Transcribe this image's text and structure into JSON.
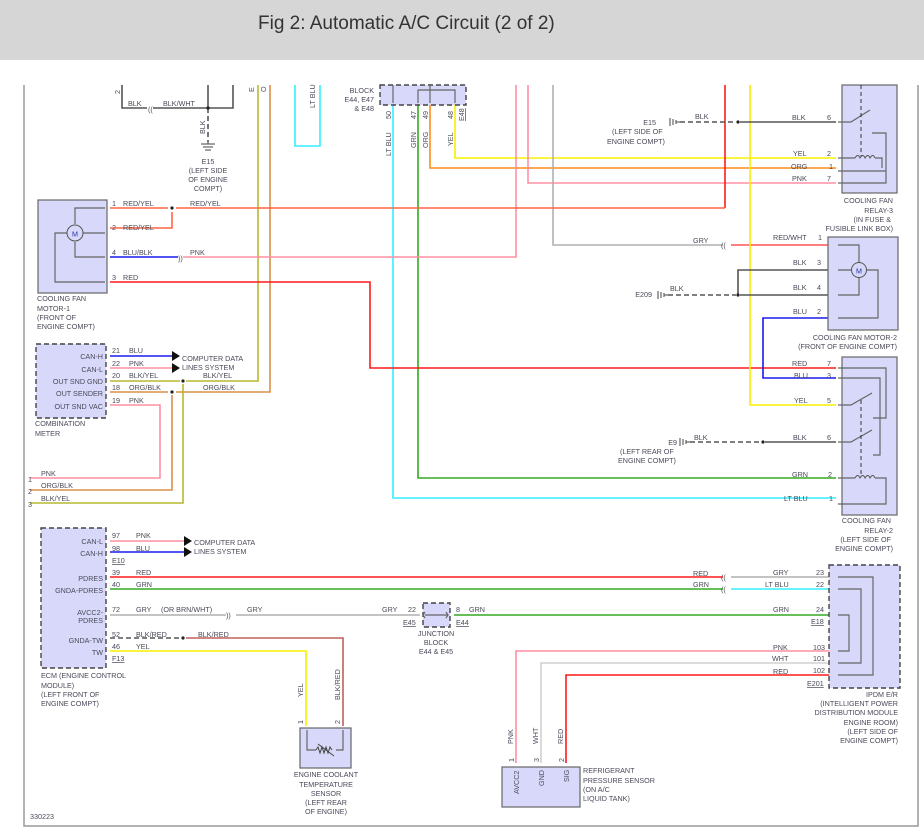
{
  "title": "Fig 2: Automatic A/C Circuit (2 of 2)",
  "figure_id": "330223",
  "colors": {
    "header_bg": "#d6d6d6",
    "component_fill": "#d8d8fa",
    "red": "#ff1a1a",
    "green": "#33aa22",
    "lt_blue": "#33eeff",
    "yellow": "#f5f000",
    "pink": "#ff8fa3",
    "orange": "#ff8c1a",
    "gray": "#b0b0b0",
    "blue": "#1a1aee",
    "black": "#555555"
  },
  "icons": [
    "ground-icon",
    "motor-icon",
    "relay-switch-icon",
    "relay-coil-icon",
    "thermistor-icon",
    "connector-icon",
    "arrow-icon",
    "splice-dot-icon"
  ],
  "e15_top": {
    "pin": "2",
    "blk": "BLK",
    "blkwht": "BLK/WHT",
    "blk_v": "BLK",
    "id": "E15",
    "loc": [
      "(LEFT SIDE",
      "OF ENGINE",
      "COMPT)"
    ],
    "e": "E",
    "o": "O",
    "ltblu": "LT BLU"
  },
  "joint_block": {
    "name": [
      "BLOCK",
      "E44, E47",
      "& E48"
    ],
    "pins": [
      "50",
      "47",
      "49",
      "48"
    ],
    "conn": "E48",
    "wires": [
      "LT BLU",
      "GRN",
      "ORG",
      "YEL"
    ]
  },
  "motor1": {
    "name": [
      "COOLING FAN",
      "MOTOR-1",
      "(FRONT OF",
      "ENGINE COMPT)"
    ],
    "m": "M",
    "pins": [
      {
        "n": "1",
        "w": "RED/YEL"
      },
      {
        "n": "2",
        "w": "RED/YEL"
      },
      {
        "n": "4",
        "w": "BLU/BLK"
      },
      {
        "n": "3",
        "w": "RED"
      }
    ],
    "redyel": "RED/YEL",
    "pnk": "PNK"
  },
  "relay3": {
    "name": [
      "COOLING FAN",
      "RELAY-3",
      "(IN FUSE &",
      "FUSIBLE LINK BOX)"
    ],
    "pins": [
      {
        "n": "6",
        "w": "BLK"
      },
      {
        "n": "2",
        "w": "YEL"
      },
      {
        "n": "1",
        "w": "ORG"
      },
      {
        "n": "7",
        "w": "PNK"
      }
    ],
    "ground": {
      "id": "E15",
      "w": "BLK",
      "loc": [
        "(LEFT SIDE OF",
        "ENGINE COMPT)"
      ]
    }
  },
  "motor2": {
    "name": [
      "COOLING FAN MOTOR-2",
      "(FRONT OF ENGINE COMPT)"
    ],
    "m": "M",
    "gry": "GRY",
    "pins": [
      {
        "n": "1",
        "w": "RED/WHT"
      },
      {
        "n": "3",
        "w": "BLK"
      },
      {
        "n": "4",
        "w": "BLK"
      },
      {
        "n": "2",
        "w": "BLU"
      }
    ],
    "ground": {
      "id": "E209",
      "w": "BLK"
    }
  },
  "relay2": {
    "name": [
      "COOLING FAN",
      "RELAY-2",
      "(LEFT SIDE OF",
      "ENGINE COMPT)"
    ],
    "pins": [
      {
        "n": "7",
        "w": "RED"
      },
      {
        "n": "3",
        "w": "BLU"
      },
      {
        "n": "5",
        "w": "YEL"
      },
      {
        "n": "6",
        "w": "BLK"
      },
      {
        "n": "2",
        "w": "GRN"
      },
      {
        "n": "1",
        "w": "LT BLU"
      }
    ],
    "ground": {
      "id": "E9",
      "w": "BLK",
      "loc": [
        "(LEFT REAR OF",
        "ENGINE COMPT)"
      ]
    }
  },
  "meter": {
    "name": [
      "COMBINATION",
      "METER"
    ],
    "pins": [
      {
        "n": "21",
        "s": "CAN-H",
        "w": "BLU"
      },
      {
        "n": "22",
        "s": "CAN-L",
        "w": "PNK"
      },
      {
        "n": "20",
        "s": "OUT SND GND",
        "w": "BLK/YEL"
      },
      {
        "n": "18",
        "s": "OUT SENDER",
        "w": "ORG/BLK"
      },
      {
        "n": "19",
        "s": "OUT SND VAC",
        "w": "PNK"
      }
    ],
    "cdl": [
      "COMPUTER DATA",
      "LINES SYSTEM"
    ],
    "blkyel": "BLK/YEL",
    "orgblk": "ORG/BLK",
    "ext": [
      {
        "n": "1",
        "w": "PNK"
      },
      {
        "n": "2",
        "w": "ORG/BLK"
      },
      {
        "n": "3",
        "w": "BLK/YEL"
      }
    ]
  },
  "ecm": {
    "name": [
      "ECM (ENGINE CONTROL",
      "MODULE)",
      "(LEFT FRONT OF",
      "ENGINE COMPT)"
    ],
    "pins": [
      {
        "n": "97",
        "s": "CAN-L",
        "w": "PNK"
      },
      {
        "n": "98",
        "s": "CAN-H",
        "w": "BLU"
      },
      {
        "n": "39",
        "s": "PDRES",
        "w": "RED"
      },
      {
        "n": "40",
        "s": "GNDA-PDRES",
        "w": "GRN"
      },
      {
        "n": "72",
        "s": "AVCC2-",
        "s2": "PDRES",
        "w": "GRY",
        "alt": "(OR BRN/WHT)"
      },
      {
        "n": "52",
        "s": "GNDA-TW",
        "w": "BLK/RED"
      },
      {
        "n": "46",
        "s": "TW",
        "w": "YEL"
      }
    ],
    "conn": [
      "E10",
      "F13"
    ],
    "cdl": [
      "COMPUTER DATA",
      "LINES SYSTEM"
    ],
    "gry": "GRY",
    "blkred": "BLK/RED"
  },
  "junction": {
    "name": [
      "JUNCTION",
      "BLOCK",
      "E44 & E45"
    ],
    "pin_in": "22",
    "pin_out": "8",
    "conn_in": "E45",
    "conn_out": "E44",
    "gry": "GRY",
    "grn": "GRN"
  },
  "ipdm": {
    "name": [
      "IPDM E/R",
      "(INTELLIGENT POWER",
      "DISTRIBUTION MODULE",
      "ENGINE ROOM)",
      "(LEFT SIDE OF",
      "ENGINE COMPT)"
    ],
    "pins": [
      {
        "n": "23",
        "w": "GRY",
        "from": "RED"
      },
      {
        "n": "22",
        "w": "LT BLU",
        "from": "GRN"
      },
      {
        "n": "24",
        "w": "GRN"
      },
      {
        "n": "103",
        "w": "PNK"
      },
      {
        "n": "101",
        "w": "WHT"
      },
      {
        "n": "102",
        "w": "RED"
      }
    ],
    "conn": [
      "E18",
      "E201"
    ]
  },
  "ect": {
    "name": [
      "ENGINE COOLANT",
      "TEMPERATURE",
      "SENSOR",
      "(LEFT REAR",
      "OF ENGINE)"
    ],
    "pins": [
      {
        "n": "1",
        "w": "YEL"
      },
      {
        "n": "2",
        "w": "BLK/RED"
      }
    ]
  },
  "rps": {
    "name": [
      "REFRIGERANT",
      "PRESSURE SENSOR",
      "(ON A/C",
      "LIQUID TANK)"
    ],
    "pins": [
      {
        "n": "1",
        "s": "AVCC2",
        "w": "PNK"
      },
      {
        "n": "3",
        "s": "GND",
        "w": "WHT"
      },
      {
        "n": "2",
        "s": "SIG",
        "w": "RED"
      }
    ]
  }
}
